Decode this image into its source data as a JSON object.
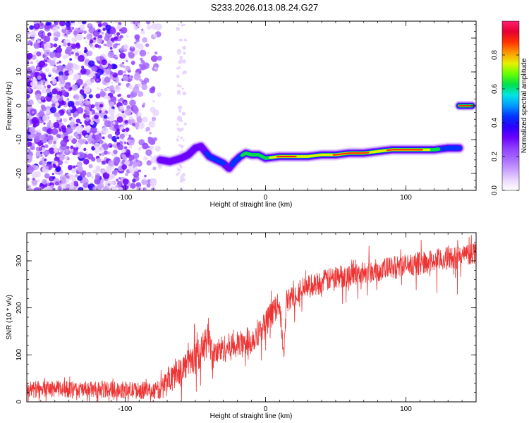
{
  "figure_title": "S233.2026.013.08.24.G27",
  "colormap": [
    "#ffffff",
    "#e9d6ff",
    "#c79cff",
    "#a66aff",
    "#8f3dff",
    "#6a00ff",
    "#2b00ff",
    "#0033ff",
    "#0099ff",
    "#00e5e5",
    "#00e04a",
    "#66ff00",
    "#e6f000",
    "#ff9900",
    "#ff3300",
    "#e60033",
    "#ff1f6f"
  ],
  "chart_data": [
    {
      "type": "heatmap",
      "title": "",
      "xlabel": "Height of straight line (km)",
      "ylabel": "Frequency (Hz)",
      "xlim": [
        -170,
        150
      ],
      "ylim": [
        -25,
        25
      ],
      "xticks": [
        -100,
        0,
        100
      ],
      "yticks": [
        -20,
        -10,
        0,
        10,
        20
      ],
      "xtick_labels": [
        "-100",
        "0",
        "100"
      ],
      "ytick_labels": [
        "-20",
        "-10",
        "0",
        "10",
        "20"
      ],
      "colorbar": {
        "label": "Normalized spectral amplitude",
        "range": [
          0,
          1
        ],
        "ticks": [
          0.0,
          0.2,
          0.4,
          0.6,
          0.8
        ],
        "tick_labels": [
          "0.0",
          "0.2",
          "0.4",
          "0.6",
          "0.8"
        ]
      },
      "noise_region": {
        "x": [
          -170,
          -75
        ],
        "y": [
          -25,
          25
        ],
        "level": 0.12
      },
      "ridge": {
        "x": [
          -75,
          -68,
          -60,
          -55,
          -50,
          -46,
          -40,
          -35,
          -30,
          -26,
          -22,
          -18,
          -14,
          -10,
          -5,
          0,
          10,
          20,
          30,
          40,
          50,
          60,
          70,
          80,
          90,
          100,
          110,
          120,
          130,
          138
        ],
        "y": [
          -16,
          -16.5,
          -15.5,
          -14.5,
          -12.5,
          -12,
          -15,
          -16,
          -17,
          -18.5,
          -16.5,
          -15,
          -14,
          -14.5,
          -14.5,
          -15.5,
          -15,
          -15,
          -15,
          -14.5,
          -14.5,
          -14,
          -14,
          -13.5,
          -13,
          -13,
          -13,
          -13,
          -12.5,
          -12.5
        ],
        "amplitude": [
          0.3,
          0.35,
          0.35,
          0.3,
          0.35,
          0.3,
          0.45,
          0.45,
          0.4,
          0.35,
          0.45,
          0.5,
          0.65,
          0.55,
          0.6,
          0.65,
          0.9,
          0.85,
          0.75,
          0.75,
          0.85,
          0.95,
          0.9,
          0.75,
          0.9,
          0.95,
          0.9,
          0.6,
          0.45,
          0.4
        ]
      },
      "spot": {
        "x": [
          138,
          147
        ],
        "y": 0,
        "amplitude": 0.9
      }
    },
    {
      "type": "line",
      "title": "",
      "xlabel": "Height of straight line (km)",
      "ylabel": "SNR (10 * v/v)",
      "xlim": [
        -170,
        150
      ],
      "ylim": [
        0,
        360
      ],
      "xticks": [
        -100,
        0,
        100
      ],
      "yticks": [
        0,
        100,
        200,
        300
      ],
      "xtick_labels": [
        "-100",
        "0",
        "100"
      ],
      "ytick_labels": [
        "0",
        "100",
        "200",
        "300"
      ],
      "color": "#ee3333",
      "series": [
        {
          "name": "SNR",
          "x": [
            -170,
            -150,
            -130,
            -110,
            -90,
            -75,
            -68,
            -60,
            -52,
            -45,
            -40,
            -38,
            -33,
            -28,
            -20,
            -15,
            -10,
            -5,
            0,
            5,
            10,
            13,
            15,
            20,
            25,
            30,
            40,
            50,
            60,
            70,
            80,
            90,
            100,
            110,
            120,
            130,
            140,
            150
          ],
          "y": [
            25,
            28,
            25,
            27,
            24,
            25,
            55,
            70,
            90,
            110,
            145,
            95,
            110,
            115,
            120,
            125,
            130,
            150,
            165,
            190,
            210,
            95,
            215,
            225,
            240,
            245,
            255,
            265,
            270,
            275,
            280,
            285,
            290,
            295,
            300,
            305,
            310,
            320
          ],
          "noise_amplitude": [
            18,
            18,
            18,
            18,
            18,
            20,
            30,
            30,
            30,
            35,
            40,
            30,
            30,
            30,
            30,
            30,
            30,
            30,
            30,
            28,
            25,
            15,
            25,
            25,
            25,
            25,
            25,
            25,
            25,
            25,
            25,
            25,
            25,
            25,
            25,
            25,
            25,
            25
          ]
        }
      ]
    }
  ]
}
